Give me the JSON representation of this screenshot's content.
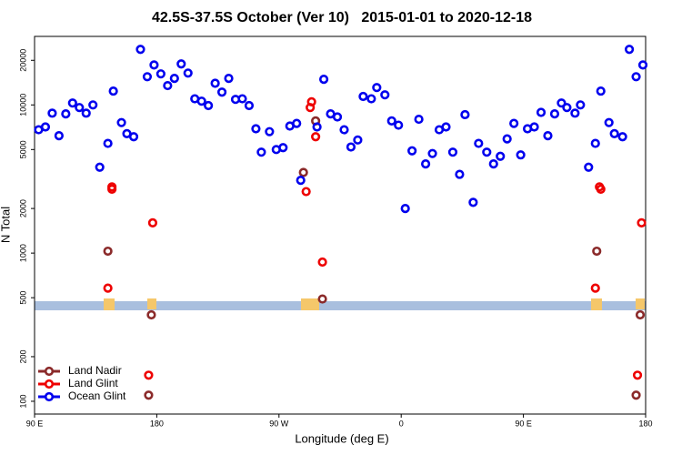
{
  "chart_data": {
    "type": "scatter",
    "title": "42.5S-37.5S October (Ver 10)   2015-01-01 to 2020-12-18",
    "x_label": "Longitude (deg E)",
    "y_label": "N Total",
    "log_y": true,
    "xlim": [
      90,
      540
    ],
    "ylim": [
      82,
      29000
    ],
    "xticks": [
      {
        "value": 90,
        "label": "90 E"
      },
      {
        "value": 180,
        "label": "180"
      },
      {
        "value": 270,
        "label": "90 W"
      },
      {
        "value": 360,
        "label": "0"
      },
      {
        "value": 450,
        "label": "90 E"
      },
      {
        "value": 540,
        "label": "180"
      }
    ],
    "yticks": [
      100,
      200,
      500,
      1000,
      2000,
      5000,
      10000,
      20000
    ],
    "legend": "lower left",
    "series": [
      {
        "name": "Land Nadir",
        "color": "#8b2a2a",
        "x": [
          144,
          174,
          176,
          288,
          297,
          302,
          504,
          533,
          536
        ],
        "values": [
          1030,
          110,
          383,
          3500,
          7800,
          490,
          1030,
          110,
          383
        ]
      },
      {
        "name": "Land Glint",
        "color": "#ee0000",
        "x": [
          144,
          147,
          147,
          177,
          174,
          294,
          293,
          297,
          290,
          302,
          503,
          506,
          507,
          537,
          534
        ],
        "values": [
          580,
          2800,
          2700,
          1600,
          150,
          10500,
          9600,
          6100,
          2600,
          870,
          580,
          2800,
          2700,
          1600,
          150
        ]
      },
      {
        "name": "Ocean Glint",
        "color": "#0000ee",
        "x": [
          93,
          98,
          103,
          108,
          113,
          118,
          123,
          128,
          133,
          138,
          144,
          148,
          154,
          158,
          163,
          168,
          173,
          178,
          183,
          188,
          193,
          198,
          203,
          208,
          213,
          218,
          223,
          228,
          233,
          238,
          243,
          248,
          253,
          257,
          263,
          268,
          273,
          278,
          283,
          286,
          298,
          303,
          308,
          313,
          318,
          323,
          328,
          332,
          338,
          342,
          348,
          353,
          358,
          363,
          368,
          373,
          378,
          383,
          388,
          393,
          398,
          403,
          407,
          413,
          417,
          423,
          428,
          433,
          438,
          443,
          448,
          453,
          458,
          463,
          468,
          473,
          478,
          482,
          488,
          492,
          498,
          503,
          507,
          513,
          517,
          523,
          528,
          533,
          538
        ],
        "values": [
          6800,
          7100,
          8800,
          6200,
          8700,
          10300,
          9600,
          8800,
          10000,
          3800,
          5500,
          12400,
          7600,
          6400,
          6100,
          23700,
          15500,
          18600,
          16200,
          13500,
          15100,
          18900,
          16400,
          11000,
          10600,
          9900,
          14000,
          12200,
          15100,
          10900,
          11000,
          9900,
          6900,
          4800,
          6600,
          5000,
          5150,
          7200,
          7500,
          3100,
          7100,
          14900,
          8700,
          8300,
          6800,
          5200,
          5800,
          11400,
          11000,
          13100,
          11700,
          7800,
          7300,
          2000,
          4900,
          8000,
          4000,
          4700,
          6800,
          7100,
          4800,
          3400,
          8600,
          2200,
          5500,
          4800,
          4000,
          4500,
          5900,
          7500,
          4600,
          6900,
          7100,
          8900,
          6200,
          8700,
          10300,
          9600,
          8800,
          10000,
          3800,
          5500,
          12400,
          7600,
          6400,
          6100,
          23700,
          15500,
          18600
        ]
      }
    ]
  }
}
